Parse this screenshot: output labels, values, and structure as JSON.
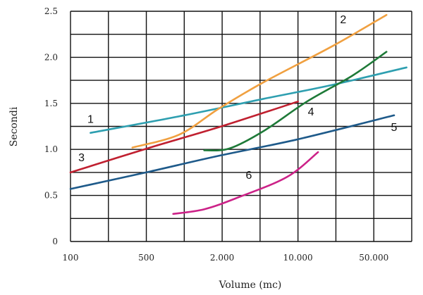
{
  "chart_data": {
    "type": "line",
    "title": "",
    "xlabel": "Volume (mc)",
    "ylabel": "Secondi",
    "x_scale": "log",
    "x_ticks": [
      {
        "value": 100,
        "label": "100"
      },
      {
        "value": 500,
        "label": "500"
      },
      {
        "value": 2000,
        "label": "2.000"
      },
      {
        "value": 10000,
        "label": "10.000"
      },
      {
        "value": 50000,
        "label": "50.000"
      }
    ],
    "y_ticks": [
      {
        "value": 0,
        "label": "0"
      },
      {
        "value": 0.5,
        "label": "0.5"
      },
      {
        "value": 1,
        "label": "1.0"
      },
      {
        "value": 1.5,
        "label": "1.5"
      },
      {
        "value": 2,
        "label": "2.0"
      },
      {
        "value": 2.5,
        "label": "2.5"
      }
    ],
    "xlim": [
      100,
      100000
    ],
    "ylim": [
      0,
      2.5
    ],
    "grid": true,
    "series": [
      {
        "label": "1",
        "color": "#2e9fb0",
        "label_at": [
          150,
          1.29
        ],
        "points": [
          [
            150,
            1.18
          ],
          [
            1000,
            1.37
          ],
          [
            5000,
            1.55
          ],
          [
            20000,
            1.7
          ],
          [
            90000,
            1.89
          ]
        ]
      },
      {
        "label": "2",
        "color": "#f0a040",
        "label_at": [
          25000,
          2.37
        ],
        "points": [
          [
            350,
            1.02
          ],
          [
            900,
            1.16
          ],
          [
            2000,
            1.44
          ],
          [
            5000,
            1.73
          ],
          [
            20000,
            2.12
          ],
          [
            60000,
            2.46
          ]
        ]
      },
      {
        "label": "3",
        "color": "#c02030",
        "label_at": [
          125,
          0.87
        ],
        "points": [
          [
            100,
            0.75
          ],
          [
            500,
            1.02
          ],
          [
            2000,
            1.24
          ],
          [
            10000,
            1.52
          ]
        ]
      },
      {
        "label": "4",
        "color": "#1e7a38",
        "label_at": [
          13000,
          1.37
        ],
        "points": [
          [
            1500,
            0.99
          ],
          [
            2500,
            1.01
          ],
          [
            5000,
            1.2
          ],
          [
            12000,
            1.52
          ],
          [
            30000,
            1.8
          ],
          [
            60000,
            2.06
          ]
        ]
      },
      {
        "label": "5",
        "color": "#1e5a8a",
        "label_at": [
          70000,
          1.2
        ],
        "points": [
          [
            100,
            0.57
          ],
          [
            500,
            0.76
          ],
          [
            2000,
            0.93
          ],
          [
            10000,
            1.11
          ],
          [
            70000,
            1.37
          ]
        ]
      },
      {
        "label": "6",
        "color": "#cc2288",
        "label_at": [
          3700,
          0.68
        ],
        "points": [
          [
            800,
            0.3
          ],
          [
            1500,
            0.35
          ],
          [
            3000,
            0.48
          ],
          [
            8000,
            0.7
          ],
          [
            15000,
            0.97
          ]
        ]
      }
    ]
  }
}
